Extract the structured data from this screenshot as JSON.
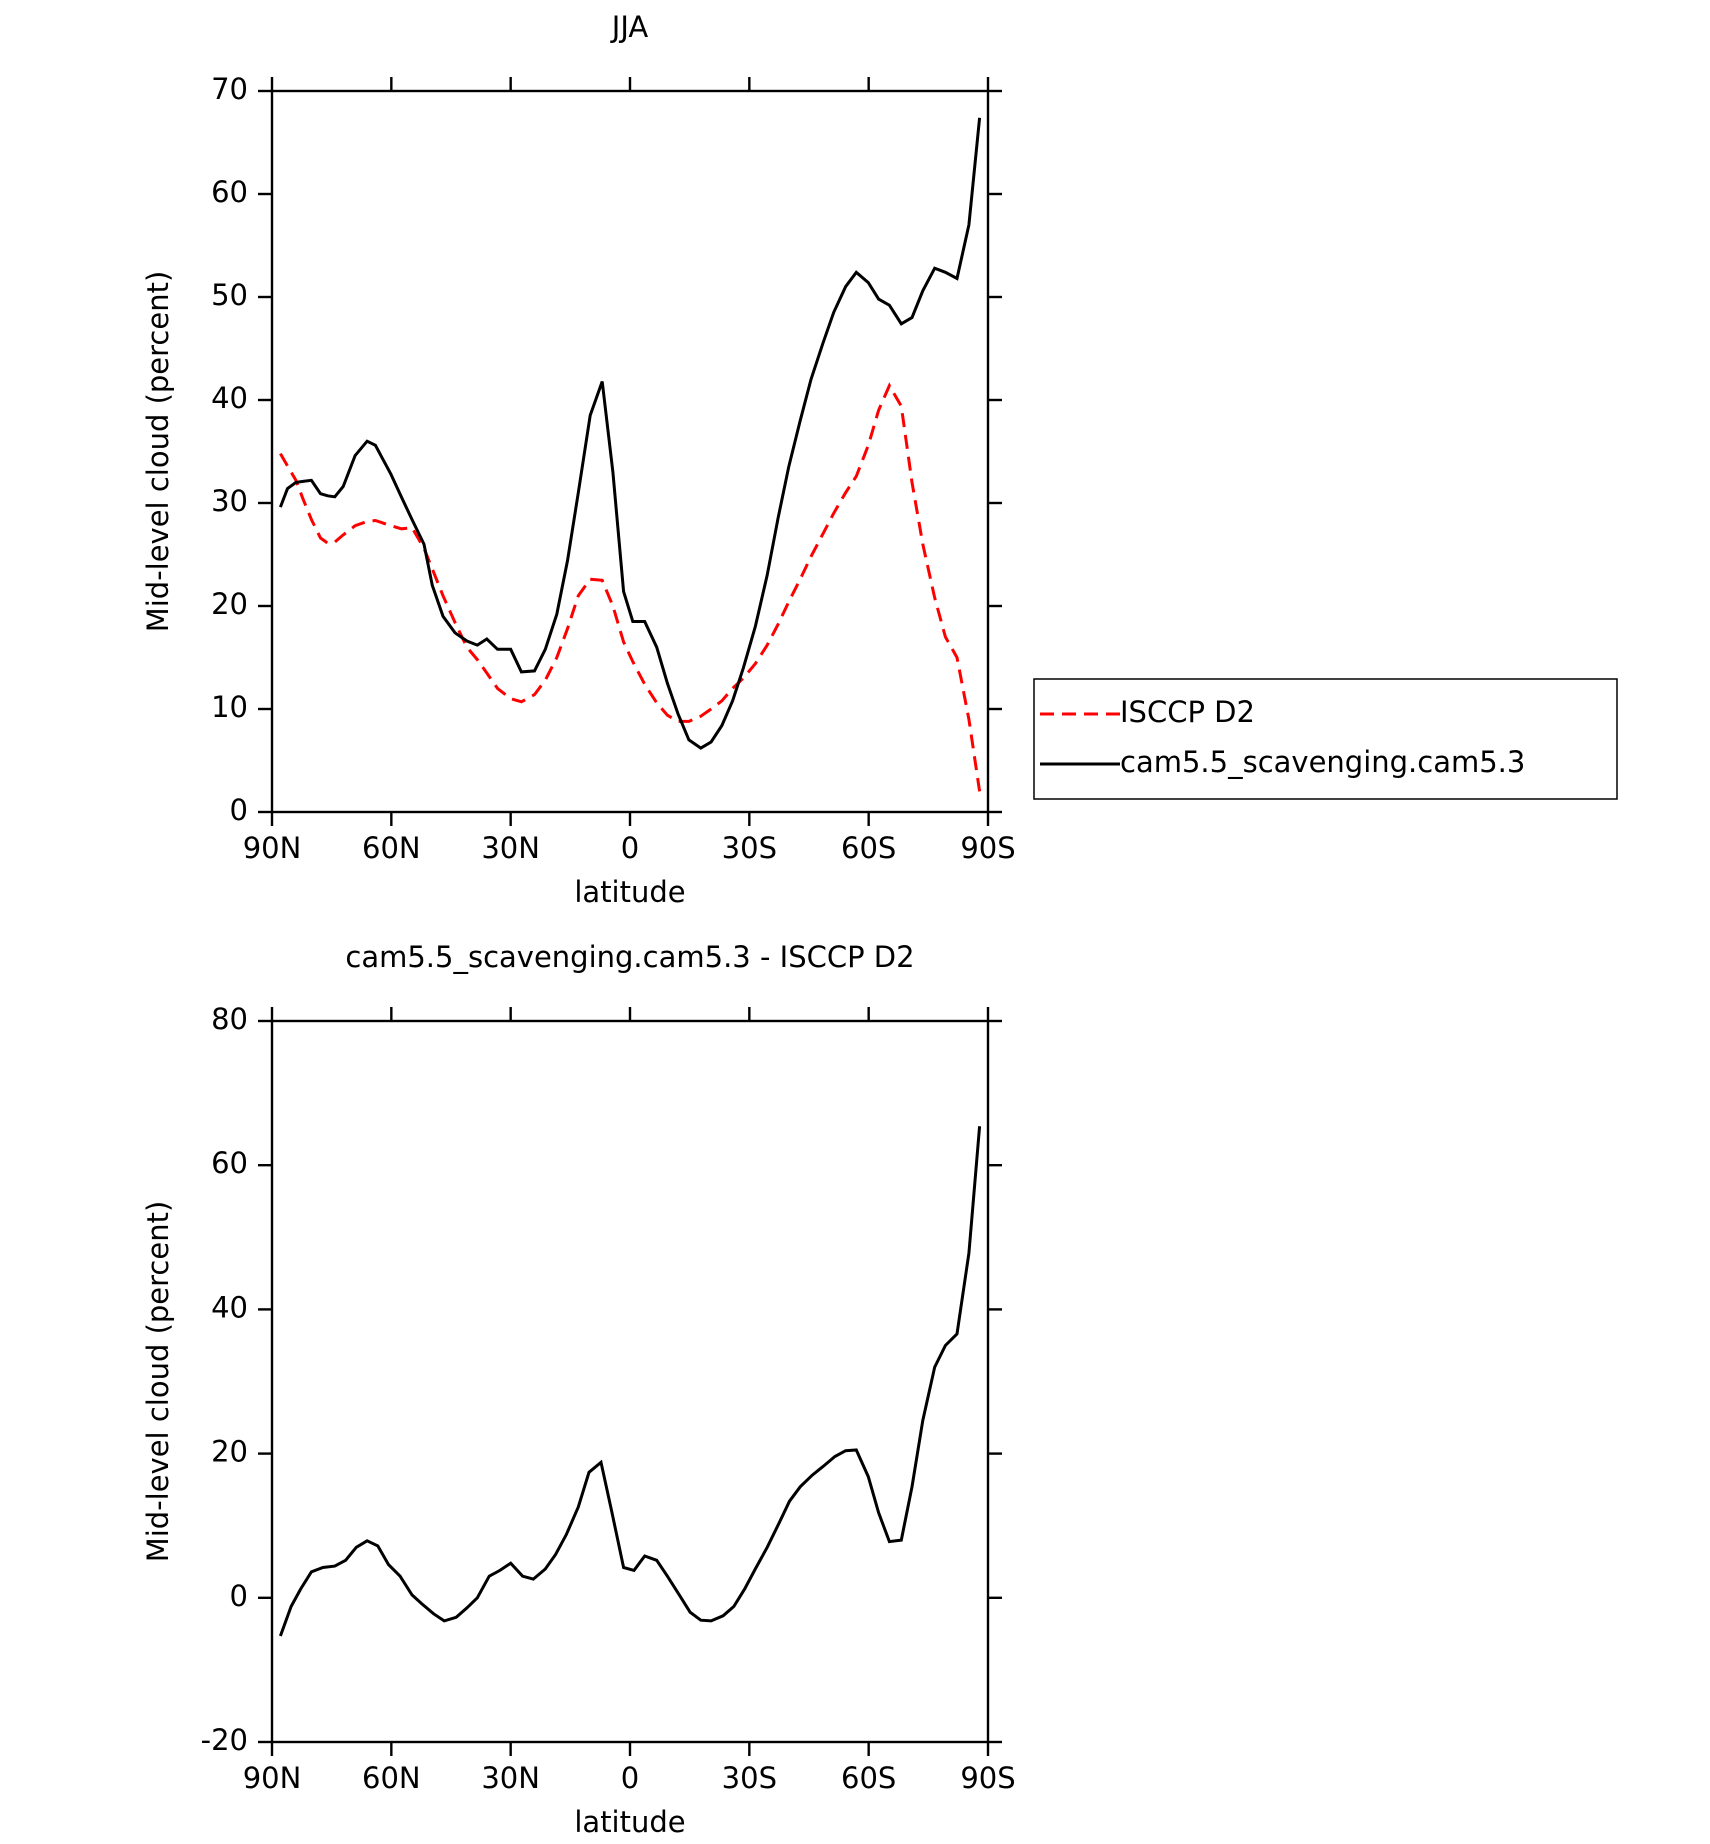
{
  "chart_data": [
    {
      "type": "line",
      "title": "JJA",
      "xlabel": "latitude",
      "ylabel": "Mid-level cloud (percent)",
      "x": [
        87.9,
        86.1,
        84.0,
        82.2,
        80.1,
        77.8,
        76.0,
        74.2,
        72.1,
        69.1,
        66.1,
        64.0,
        60.1,
        57.5,
        54.8,
        51.8,
        49.7,
        47.0,
        44.0,
        41.0,
        38.4,
        36.0,
        33.3,
        30.0,
        27.3,
        24.0,
        21.3,
        18.4,
        15.7,
        13.0,
        10.0,
        7.0,
        4.3,
        1.6,
        -0.7,
        -3.7,
        -6.7,
        -9.4,
        -12.1,
        -14.8,
        -17.8,
        -20.4,
        -23.1,
        -25.8,
        -28.5,
        -31.5,
        -34.5,
        -37.2,
        -39.9,
        -42.8,
        -45.5,
        -48.5,
        -51.2,
        -54.2,
        -56.9,
        -59.9,
        -62.5,
        -65.2,
        -68.2,
        -70.9,
        -73.6,
        -76.6,
        -79.3,
        -82.2,
        -85.2,
        -87.9
      ],
      "series": [
        {
          "name": "ISCCP D2",
          "color": "#ff0000",
          "style": "dashed",
          "values": [
            34.8,
            33.6,
            32.2,
            30.4,
            28.4,
            26.6,
            26.1,
            26.2,
            26.9,
            27.8,
            28.2,
            28.3,
            27.8,
            27.5,
            27.6,
            25.6,
            23.6,
            21,
            18.4,
            16,
            14.8,
            13.5,
            12,
            11,
            10.7,
            11.4,
            12.8,
            15,
            17.8,
            21,
            22.6,
            22.5,
            20,
            16.5,
            14.6,
            12.4,
            10.6,
            9.4,
            8.8,
            8.8,
            9.3,
            10,
            10.8,
            12,
            13,
            14.4,
            16.2,
            18.2,
            20.4,
            22.6,
            24.8,
            27,
            29,
            31,
            32.6,
            35.6,
            39,
            41.4,
            39.4,
            32,
            26,
            20.8,
            17,
            15,
            9,
            2
          ]
        },
        {
          "name": "cam5.5_scavenging.cam5.3",
          "color": "#000000",
          "style": "solid",
          "values": [
            29.6,
            31.4,
            32,
            32.1,
            32.2,
            30.9,
            30.7,
            30.6,
            31.6,
            34.6,
            36,
            35.6,
            32.8,
            30.6,
            28.4,
            26,
            22,
            19,
            17.4,
            16.6,
            16.2,
            16.8,
            15.8,
            15.8,
            13.6,
            13.7,
            15.8,
            19.2,
            24.4,
            31,
            38.5,
            41.8,
            33,
            21.4,
            18.5,
            18.5,
            16,
            12.5,
            9.5,
            7,
            6.2,
            6.8,
            8.4,
            10.8,
            14,
            18,
            23,
            28.5,
            33.5,
            38,
            42,
            45.5,
            48.5,
            51,
            52.4,
            51.4,
            49.8,
            49.2,
            47.4,
            48,
            50.6,
            52.8,
            52.4,
            51.8,
            57,
            67.4
          ]
        }
      ],
      "xlim": [
        90,
        -90
      ],
      "xticks": [
        {
          "value": 90,
          "label": "90N"
        },
        {
          "value": 60,
          "label": "60N"
        },
        {
          "value": 30,
          "label": "30N"
        },
        0,
        {
          "value": -30,
          "label": "30S"
        },
        {
          "value": -60,
          "label": "60S"
        },
        {
          "value": -90,
          "label": "90S"
        }
      ],
      "ylim": [
        0,
        70
      ],
      "yticks": [
        0,
        10,
        20,
        30,
        40,
        50,
        60,
        70
      ],
      "legend": "right"
    },
    {
      "type": "line",
      "title": "cam5.5_scavenging.cam5.3 - ISCCP D2",
      "xlabel": "latitude",
      "ylabel": "Mid-level cloud (percent)",
      "x": [
        87.9,
        85.2,
        82.8,
        80.1,
        77.2,
        74.2,
        71.5,
        68.8,
        66.1,
        63.4,
        60.7,
        57.8,
        54.8,
        52.4,
        49.4,
        46.7,
        43.7,
        41.0,
        38.4,
        35.4,
        32.7,
        30.0,
        27.0,
        24.3,
        21.3,
        18.7,
        16.0,
        13.0,
        10.3,
        7.3,
        4.6,
        1.6,
        -1.0,
        -3.7,
        -6.7,
        -9.4,
        -12.4,
        -15.1,
        -17.8,
        -20.4,
        -23.4,
        -26.1,
        -28.8,
        -31.5,
        -34.5,
        -37.5,
        -40.1,
        -42.8,
        -45.8,
        -48.5,
        -51.5,
        -54.2,
        -56.9,
        -59.9,
        -62.5,
        -65.2,
        -68.2,
        -70.9,
        -73.6,
        -76.6,
        -79.3,
        -82.2,
        -85.2,
        -87.9
      ],
      "series": [
        {
          "color": "#000000",
          "style": "solid",
          "values": [
            -5.3,
            -1.2,
            1.2,
            3.6,
            4.2,
            4.4,
            5.2,
            7,
            7.9,
            7.2,
            4.6,
            3,
            0.4,
            -0.8,
            -2.2,
            -3.2,
            -2.7,
            -1.4,
            0,
            3,
            3.8,
            4.8,
            3,
            2.6,
            4,
            6,
            8.8,
            12.6,
            17.4,
            18.8,
            12,
            4.2,
            3.8,
            5.8,
            5.2,
            3,
            0.4,
            -2,
            -3.1,
            -3.2,
            -2.5,
            -1.2,
            1.2,
            4,
            7,
            10.4,
            13.4,
            15.4,
            17,
            18.2,
            19.6,
            20.4,
            20.5,
            16.8,
            11.8,
            7.8,
            8,
            15.4,
            24.6,
            32,
            35,
            36.6,
            47.8,
            65.4
          ]
        }
      ],
      "xlim": [
        90,
        -90
      ],
      "xticks": [
        {
          "value": 90,
          "label": "90N"
        },
        {
          "value": 60,
          "label": "60N"
        },
        {
          "value": 30,
          "label": "30N"
        },
        0,
        {
          "value": -30,
          "label": "30S"
        },
        {
          "value": -60,
          "label": "60S"
        },
        {
          "value": -90,
          "label": "90S"
        }
      ],
      "ylim": [
        -20,
        80
      ],
      "yticks": [
        -20,
        0,
        20,
        40,
        60,
        80
      ]
    }
  ]
}
